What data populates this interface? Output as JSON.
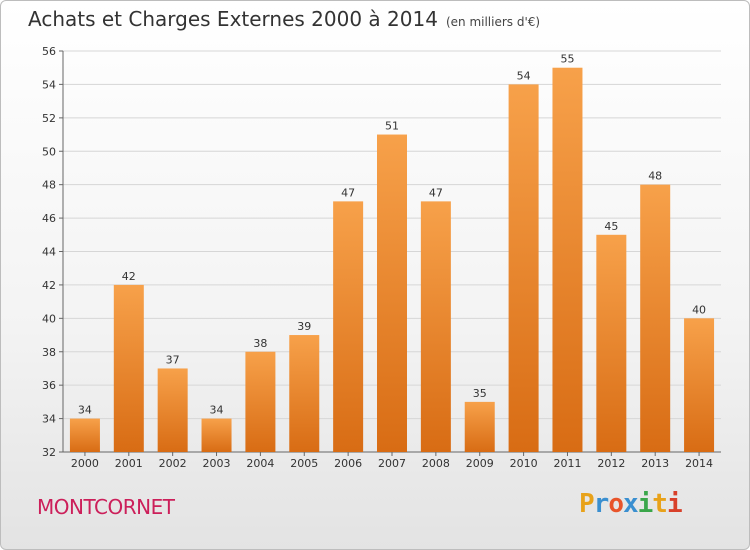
{
  "chart_data": {
    "type": "bar",
    "title": "Achats et Charges Externes 2000 à 2014",
    "subtitle": "(en milliers d'€)",
    "categories": [
      "2000",
      "2001",
      "2002",
      "2003",
      "2004",
      "2005",
      "2006",
      "2007",
      "2008",
      "2009",
      "2010",
      "2011",
      "2012",
      "2013",
      "2014"
    ],
    "values": [
      34,
      42,
      37,
      34,
      38,
      39,
      47,
      51,
      47,
      35,
      54,
      55,
      45,
      48,
      40
    ],
    "ylim": [
      32,
      56
    ],
    "yticks": [
      32,
      34,
      36,
      38,
      40,
      42,
      44,
      46,
      48,
      50,
      52,
      54,
      56
    ],
    "xlabel": "",
    "ylabel": "",
    "grid": true,
    "bar_color_light": "#f7a14a",
    "bar_color_dark": "#d86c14"
  },
  "commune": "MONTCORNET",
  "logo": {
    "letters": [
      "P",
      "r",
      "o",
      "x",
      "i",
      "t",
      "i"
    ],
    "colors": [
      "#e8a21a",
      "#3a8fd0",
      "#e8542a",
      "#3a8fd0",
      "#3aa64a",
      "#e8a21a",
      "#d8402a"
    ]
  }
}
